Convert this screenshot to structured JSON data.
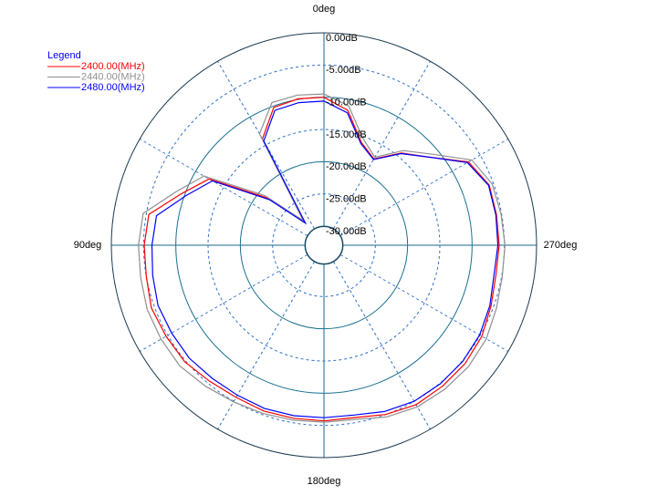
{
  "chart_data": {
    "type": "polar",
    "legend_title": "Legend",
    "legend_position": "upper left",
    "theta_direction": "counterclockwise",
    "theta_zero": "top",
    "rlim": [
      -30,
      0
    ],
    "rticks": [
      {
        "value": 0,
        "label": "0.00dB"
      },
      {
        "value": -5,
        "label": "-5.00dB"
      },
      {
        "value": -10,
        "label": "-10.00dB"
      },
      {
        "value": -15,
        "label": "-15.00dB"
      },
      {
        "value": -20,
        "label": "-20.00dB"
      },
      {
        "value": -25,
        "label": "-25.00dB"
      },
      {
        "value": -30,
        "label": "-30.00dB"
      }
    ],
    "thetaticks": [
      {
        "value": 0,
        "label": "0deg"
      },
      {
        "value": 90,
        "label": "90deg"
      },
      {
        "value": 180,
        "label": "180deg"
      },
      {
        "value": 270,
        "label": "270deg"
      }
    ],
    "theta": [
      0,
      10,
      20,
      30,
      40,
      50,
      60,
      70,
      80,
      90,
      100,
      110,
      120,
      130,
      140,
      150,
      160,
      170,
      180,
      190,
      200,
      210,
      220,
      230,
      240,
      250,
      260,
      270,
      280,
      290,
      300,
      310,
      320,
      330,
      340,
      350
    ],
    "series": [
      {
        "name": "2400.00(MHz)",
        "color": "#ff0000",
        "values": [
          -10.0,
          -9.9,
          -10.2,
          -13.9,
          -28.0,
          -21.6,
          -12.4,
          -9.5,
          -5.4,
          -5.1,
          -5.0,
          -4.5,
          -4.7,
          -4.8,
          -5.4,
          -5.7,
          -5.6,
          -5.7,
          -5.7,
          -5.8,
          -5.0,
          -4.4,
          -4.4,
          -4.4,
          -4.7,
          -5.4,
          -5.9,
          -5.8,
          -5.8,
          -5.7,
          -7.1,
          -11.7,
          -14.3,
          -17.5,
          -16.0,
          -11.7
        ]
      },
      {
        "name": "2440.00(MHz)",
        "color": "#909090",
        "values": [
          -9.5,
          -9.3,
          -9.4,
          -13.0,
          -28.0,
          -21.0,
          -11.5,
          -8.6,
          -4.5,
          -4.2,
          -4.1,
          -3.8,
          -3.8,
          -3.8,
          -4.4,
          -4.9,
          -5.2,
          -5.4,
          -5.5,
          -5.5,
          -4.6,
          -4.0,
          -3.8,
          -3.7,
          -3.9,
          -4.5,
          -4.9,
          -4.9,
          -5.1,
          -5.2,
          -6.5,
          -11.0,
          -13.8,
          -17.2,
          -15.3,
          -11.0
        ]
      },
      {
        "name": "2480.00(MHz)",
        "color": "#0000ff",
        "values": [
          -10.6,
          -10.5,
          -10.7,
          -14.3,
          -28.5,
          -22.0,
          -13.0,
          -10.3,
          -6.6,
          -6.3,
          -6.0,
          -5.6,
          -5.7,
          -5.7,
          -6.0,
          -6.1,
          -6.0,
          -6.1,
          -6.2,
          -6.2,
          -5.5,
          -5.0,
          -4.9,
          -4.9,
          -5.1,
          -5.6,
          -6.2,
          -6.0,
          -5.9,
          -5.8,
          -7.3,
          -11.7,
          -14.4,
          -17.6,
          -16.2,
          -12.1
        ]
      }
    ]
  }
}
